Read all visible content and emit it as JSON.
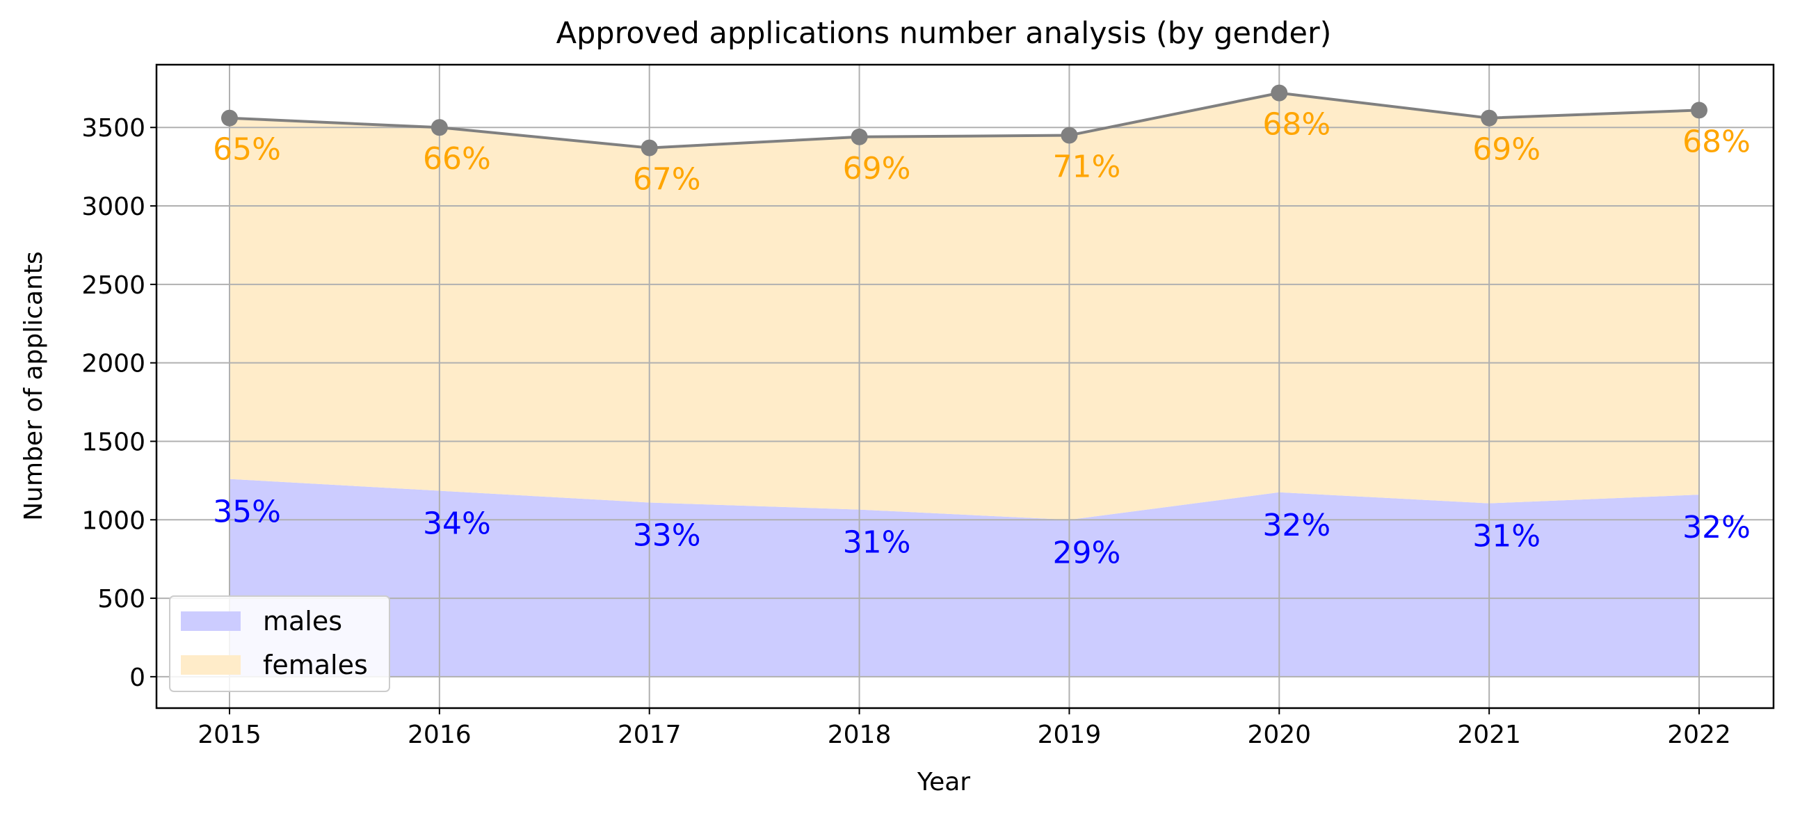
{
  "chart_data": {
    "type": "area",
    "stacked": true,
    "title": "Approved applications number analysis (by gender)",
    "xlabel": "Year",
    "ylabel": "Number of applicants",
    "x": [
      "2015",
      "2016",
      "2017",
      "2018",
      "2019",
      "2020",
      "2021",
      "2022"
    ],
    "ylim": [
      -200,
      3900
    ],
    "yticks": [
      0,
      500,
      1000,
      1500,
      2000,
      2500,
      3000,
      3500
    ],
    "grid": true,
    "legend": {
      "position": "lower-left",
      "entries": [
        "males",
        "females"
      ]
    },
    "series": [
      {
        "name": "males",
        "color": "#ccccff",
        "label_color": "#0000ff",
        "values": [
          1260,
          1185,
          1110,
          1065,
          1000,
          1175,
          1105,
          1160
        ],
        "percent_labels": [
          "35%",
          "34%",
          "33%",
          "31%",
          "29%",
          "32%",
          "31%",
          "32%"
        ]
      },
      {
        "name": "females",
        "color": "#ffecc9",
        "label_color": "#ffa500",
        "values": [
          2300,
          2315,
          2260,
          2375,
          2450,
          2545,
          2455,
          2450
        ],
        "percent_labels": [
          "65%",
          "66%",
          "67%",
          "69%",
          "71%",
          "68%",
          "69%",
          "68%"
        ]
      }
    ],
    "total": {
      "color": "#808080",
      "values": [
        3560,
        3500,
        3370,
        3440,
        3450,
        3720,
        3560,
        3610
      ]
    }
  }
}
